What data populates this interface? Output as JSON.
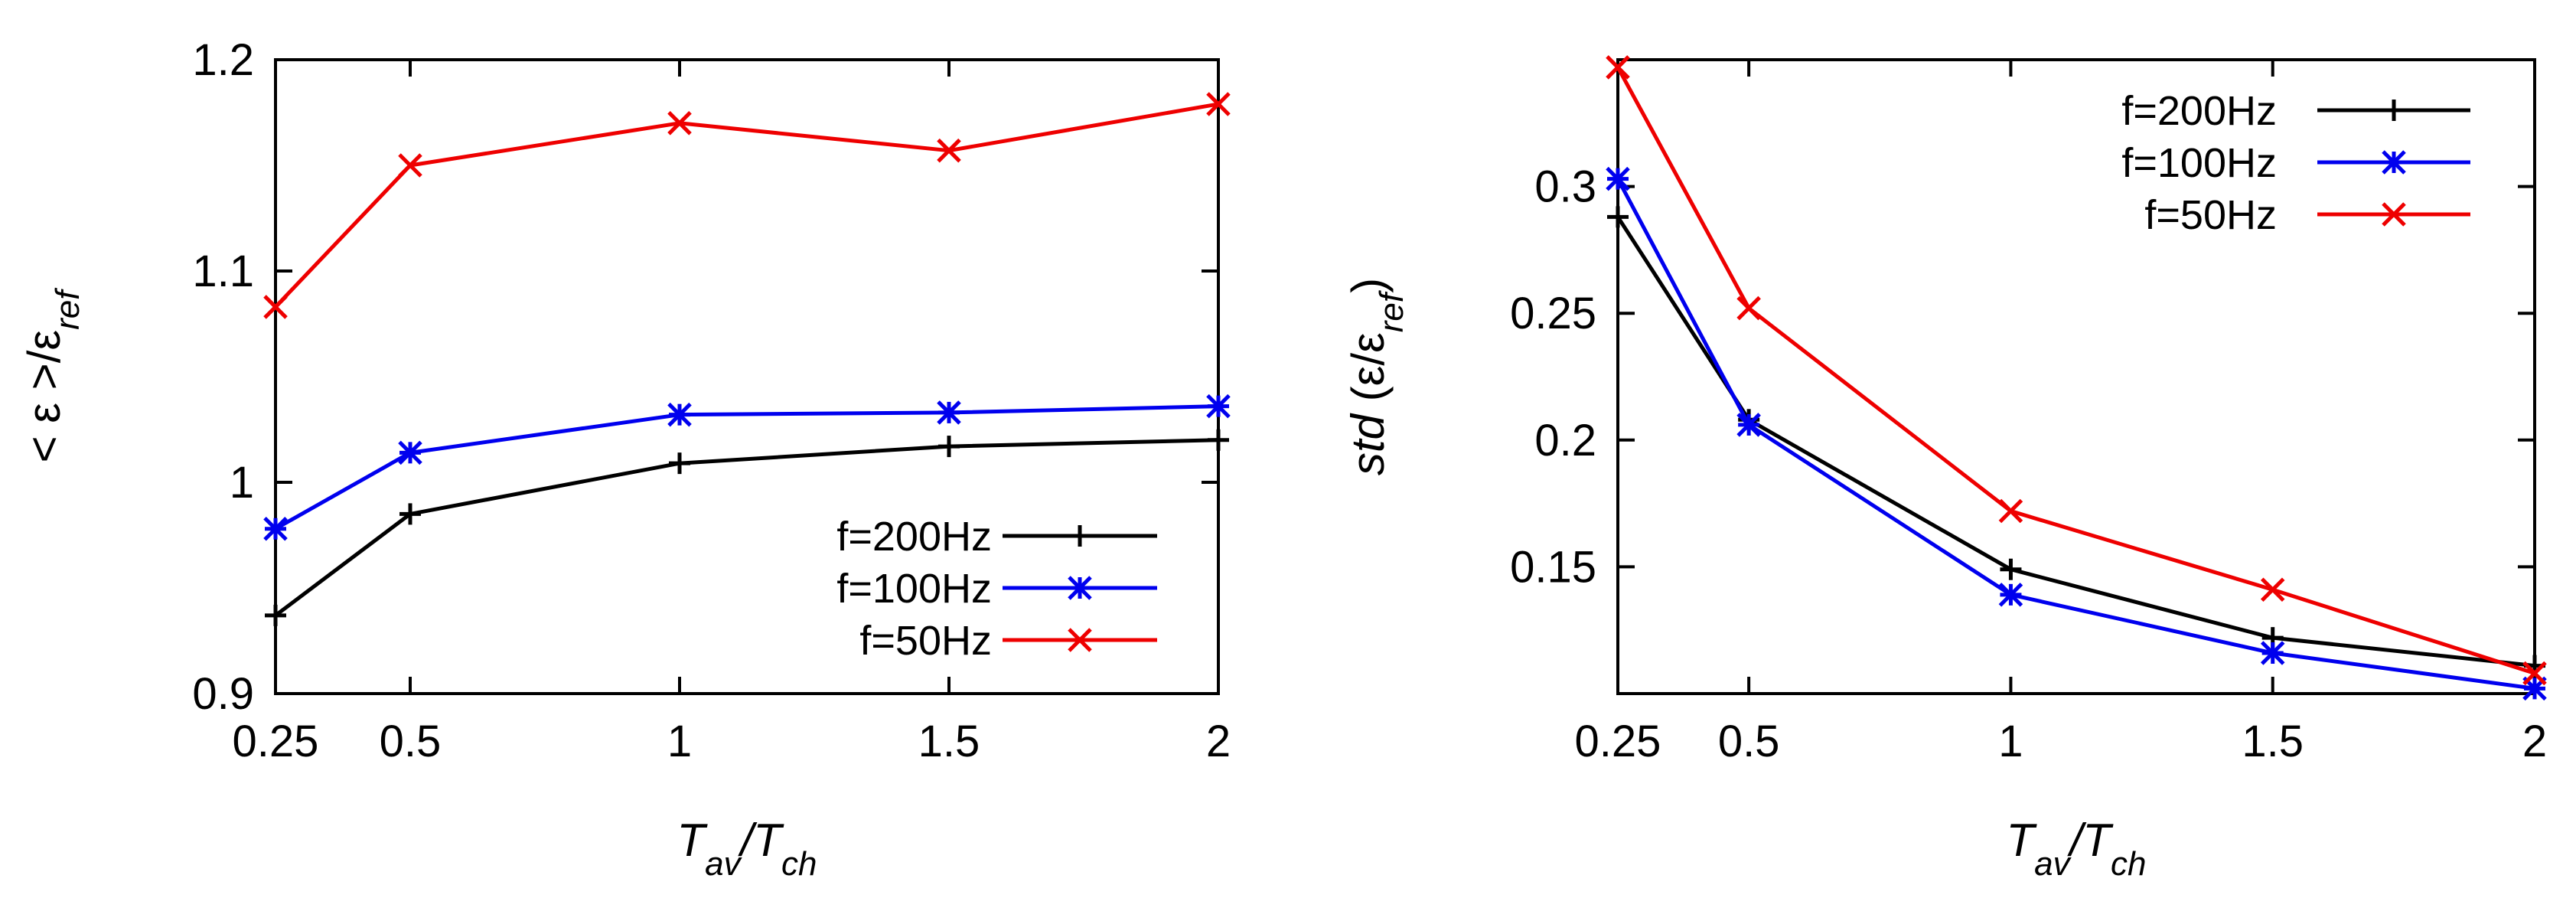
{
  "chart_data": [
    {
      "type": "line",
      "title": "",
      "xlabel": "T_av/T_ch",
      "ylabel": "<ε>/ε_ref",
      "xlabel_parts": {
        "main1": "T",
        "sub1": "av",
        "sep": "/",
        "main2": "T",
        "sub2": "ch"
      },
      "ylabel_parts": {
        "main": "< ε >/ε",
        "sub": "ref"
      },
      "xlim": [
        0.25,
        2
      ],
      "ylim": [
        0.9,
        1.2
      ],
      "x_ticks": [
        0.25,
        0.5,
        1,
        1.5,
        2
      ],
      "x_tick_labels": [
        "0.25",
        "0.5",
        "1",
        "1.5",
        "2"
      ],
      "y_ticks": [
        0.9,
        1.0,
        1.1,
        1.2
      ],
      "y_tick_labels": [
        "0.9",
        "1",
        "1.1",
        "1.2"
      ],
      "legend_position": "bottom-right",
      "x": [
        0.25,
        0.5,
        1,
        1.5,
        2
      ],
      "series": [
        {
          "name": "f=200Hz",
          "color": "#000000",
          "marker": "plus",
          "values": [
            0.937,
            0.985,
            1.009,
            1.017,
            1.02
          ]
        },
        {
          "name": "f=100Hz",
          "color": "#0000ee",
          "marker": "star",
          "values": [
            0.978,
            1.014,
            1.032,
            1.033,
            1.036
          ]
        },
        {
          "name": "f=50Hz",
          "color": "#ee0000",
          "marker": "cross",
          "values": [
            1.083,
            1.15,
            1.17,
            1.157,
            1.179
          ]
        }
      ]
    },
    {
      "type": "line",
      "title": "",
      "xlabel": "T_av/T_ch",
      "ylabel": "std (ε/ε_ref)",
      "xlabel_parts": {
        "main1": "T",
        "sub1": "av",
        "sep": "/",
        "main2": "T",
        "sub2": "ch"
      },
      "ylabel_parts": {
        "main": "std",
        "paren": " (ε/ε",
        "sub": "ref",
        "close": ")"
      },
      "xlim": [
        0.25,
        2
      ],
      "ylim": [
        0.1,
        0.35
      ],
      "x_ticks": [
        0.25,
        0.5,
        1,
        1.5,
        2
      ],
      "x_tick_labels": [
        "0.25",
        "0.5",
        "1",
        "1.5",
        "2"
      ],
      "y_ticks": [
        0.15,
        0.2,
        0.25,
        0.3
      ],
      "y_tick_labels": [
        "0.15",
        "0.2",
        "0.25",
        "0.3"
      ],
      "legend_position": "top-right",
      "x": [
        0.25,
        0.5,
        1,
        1.5,
        2
      ],
      "series": [
        {
          "name": "f=200Hz",
          "color": "#000000",
          "marker": "plus",
          "values": [
            0.288,
            0.208,
            0.149,
            0.122,
            0.111
          ]
        },
        {
          "name": "f=100Hz",
          "color": "#0000ee",
          "marker": "star",
          "values": [
            0.303,
            0.206,
            0.139,
            0.116,
            0.102
          ]
        },
        {
          "name": "f=50Hz",
          "color": "#ee0000",
          "marker": "cross",
          "values": [
            0.347,
            0.252,
            0.172,
            0.141,
            0.108
          ]
        }
      ]
    }
  ]
}
